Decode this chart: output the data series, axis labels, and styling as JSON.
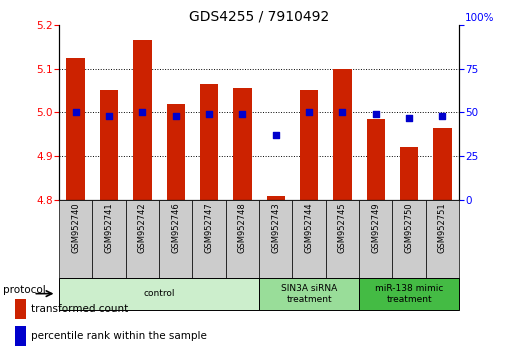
{
  "title": "GDS4255 / 7910492",
  "samples": [
    "GSM952740",
    "GSM952741",
    "GSM952742",
    "GSM952746",
    "GSM952747",
    "GSM952748",
    "GSM952743",
    "GSM952744",
    "GSM952745",
    "GSM952749",
    "GSM952750",
    "GSM952751"
  ],
  "bar_values": [
    5.125,
    5.05,
    5.165,
    5.02,
    5.065,
    5.055,
    4.81,
    5.05,
    5.1,
    4.985,
    4.92,
    4.965
  ],
  "blue_values": [
    50,
    48,
    50,
    48,
    49,
    49,
    37,
    50,
    50,
    49,
    47,
    48
  ],
  "bar_bottom": 4.8,
  "ylim_left": [
    4.8,
    5.2
  ],
  "ylim_right": [
    0,
    100
  ],
  "yticks_left": [
    4.8,
    4.9,
    5.0,
    5.1,
    5.2
  ],
  "yticks_right": [
    0,
    25,
    50,
    75,
    100
  ],
  "groups": [
    {
      "label": "control",
      "indices": [
        0,
        5
      ],
      "color": "#cceecc"
    },
    {
      "label": "SIN3A siRNA\ntreatment",
      "indices": [
        6,
        8
      ],
      "color": "#99dd99"
    },
    {
      "label": "miR-138 mimic\ntreatment",
      "indices": [
        9,
        11
      ],
      "color": "#44bb44"
    }
  ],
  "bar_color": "#cc2200",
  "blue_color": "#0000cc",
  "sample_box_color": "#cccccc",
  "title_fontsize": 10,
  "tick_fontsize": 7.5,
  "label_fontsize": 7,
  "legend_fontsize": 7.5,
  "protocol_label": "protocol"
}
